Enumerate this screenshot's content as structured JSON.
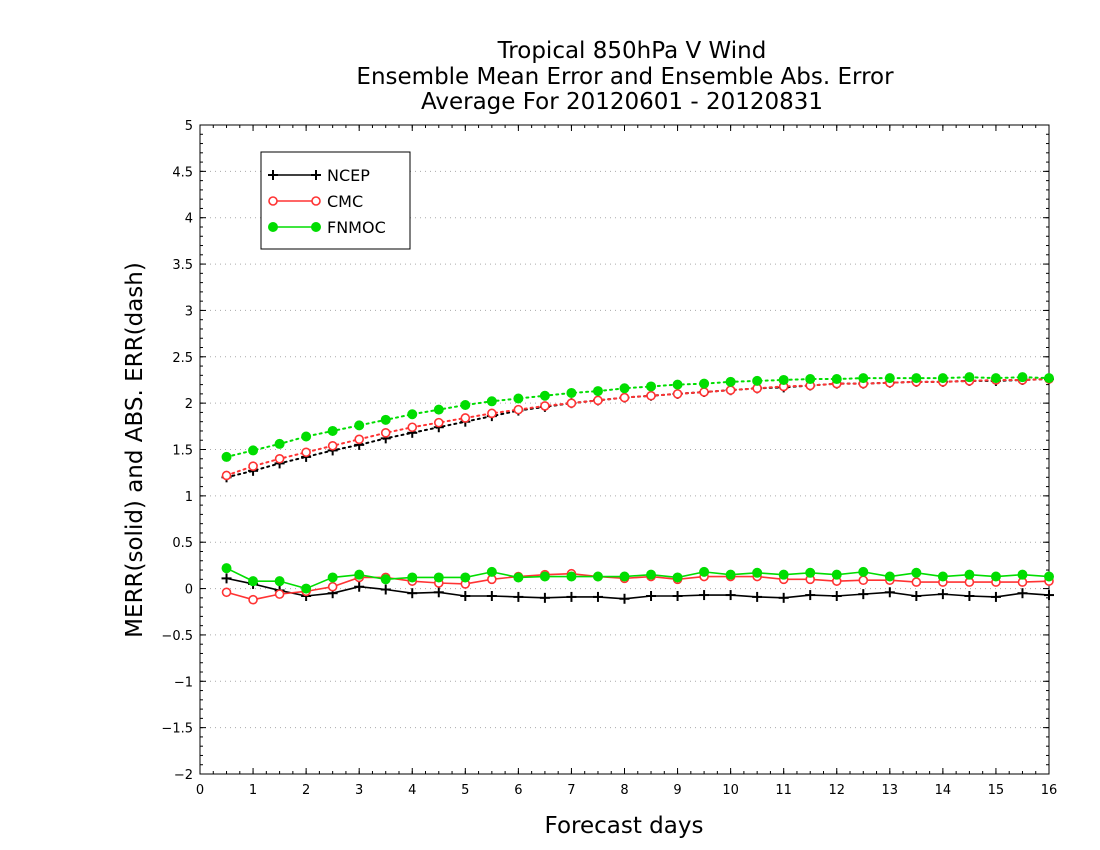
{
  "chart_data": {
    "type": "line",
    "title_lines": [
      "Tropical 850hPa V Wind",
      "Ensemble Mean Error and Ensemble Abs. Error",
      "Average For 20120601 - 20120831"
    ],
    "xlabel": "Forecast days",
    "ylabel": "MERR(solid) and ABS. ERR(dash)",
    "xlim": [
      0,
      16
    ],
    "ylim": [
      -2,
      5
    ],
    "x_ticks": [
      0,
      1,
      2,
      3,
      4,
      5,
      6,
      7,
      8,
      9,
      10,
      11,
      12,
      13,
      14,
      15,
      16
    ],
    "y_ticks": [
      -2,
      -1.5,
      -1,
      -0.5,
      0,
      0.5,
      1,
      1.5,
      2,
      2.5,
      3,
      3.5,
      4,
      4.5,
      5
    ],
    "grid": "horizontal dotted",
    "legend_position": "top-left",
    "x": [
      0.5,
      1,
      1.5,
      2,
      2.5,
      3,
      3.5,
      4,
      4.5,
      5,
      5.5,
      6,
      6.5,
      7,
      7.5,
      8,
      8.5,
      9,
      9.5,
      10,
      10.5,
      11,
      11.5,
      12,
      12.5,
      13,
      13.5,
      14,
      14.5,
      15,
      15.5,
      16
    ],
    "series": [
      {
        "name": "NCEP",
        "color": "#000000",
        "marker": "plus",
        "merr": [
          0.11,
          0.05,
          -0.02,
          -0.08,
          -0.05,
          0.02,
          -0.01,
          -0.05,
          -0.04,
          -0.08,
          -0.08,
          -0.09,
          -0.1,
          -0.09,
          -0.09,
          -0.11,
          -0.08,
          -0.08,
          -0.07,
          -0.07,
          -0.09,
          -0.1,
          -0.07,
          -0.08,
          -0.06,
          -0.04,
          -0.08,
          -0.06,
          -0.08,
          -0.09,
          -0.05,
          -0.07
        ],
        "abs_err": [
          1.2,
          1.27,
          1.35,
          1.42,
          1.49,
          1.55,
          1.62,
          1.68,
          1.74,
          1.8,
          1.86,
          1.92,
          1.96,
          2.0,
          2.03,
          2.06,
          2.08,
          2.1,
          2.12,
          2.14,
          2.16,
          2.17,
          2.19,
          2.21,
          2.21,
          2.22,
          2.23,
          2.23,
          2.24,
          2.24,
          2.25,
          2.26
        ]
      },
      {
        "name": "CMC",
        "color": "#ff3333",
        "marker": "open-circle",
        "merr": [
          -0.04,
          -0.12,
          -0.06,
          -0.03,
          0.02,
          0.12,
          0.12,
          0.08,
          0.06,
          0.05,
          0.1,
          0.13,
          0.15,
          0.16,
          0.13,
          0.11,
          0.13,
          0.1,
          0.13,
          0.13,
          0.13,
          0.1,
          0.1,
          0.08,
          0.09,
          0.09,
          0.07,
          0.07,
          0.07,
          0.07,
          0.07,
          0.08
        ],
        "abs_err": [
          1.22,
          1.32,
          1.4,
          1.47,
          1.54,
          1.61,
          1.68,
          1.74,
          1.79,
          1.84,
          1.89,
          1.93,
          1.97,
          2.0,
          2.03,
          2.06,
          2.08,
          2.1,
          2.12,
          2.14,
          2.16,
          2.18,
          2.19,
          2.21,
          2.21,
          2.22,
          2.23,
          2.23,
          2.24,
          2.25,
          2.25,
          2.26
        ]
      },
      {
        "name": "FNMOC",
        "color": "#00dd00",
        "marker": "filled-circle",
        "merr": [
          0.22,
          0.08,
          0.08,
          0.0,
          0.12,
          0.15,
          0.1,
          0.12,
          0.12,
          0.12,
          0.18,
          0.12,
          0.13,
          0.13,
          0.13,
          0.13,
          0.15,
          0.12,
          0.18,
          0.15,
          0.17,
          0.15,
          0.17,
          0.15,
          0.18,
          0.13,
          0.17,
          0.13,
          0.15,
          0.13,
          0.15,
          0.13
        ],
        "abs_err": [
          1.42,
          1.49,
          1.56,
          1.64,
          1.7,
          1.76,
          1.82,
          1.88,
          1.93,
          1.98,
          2.02,
          2.05,
          2.08,
          2.11,
          2.13,
          2.16,
          2.18,
          2.2,
          2.21,
          2.23,
          2.24,
          2.25,
          2.26,
          2.26,
          2.27,
          2.27,
          2.27,
          2.27,
          2.28,
          2.27,
          2.28,
          2.27
        ]
      }
    ]
  }
}
